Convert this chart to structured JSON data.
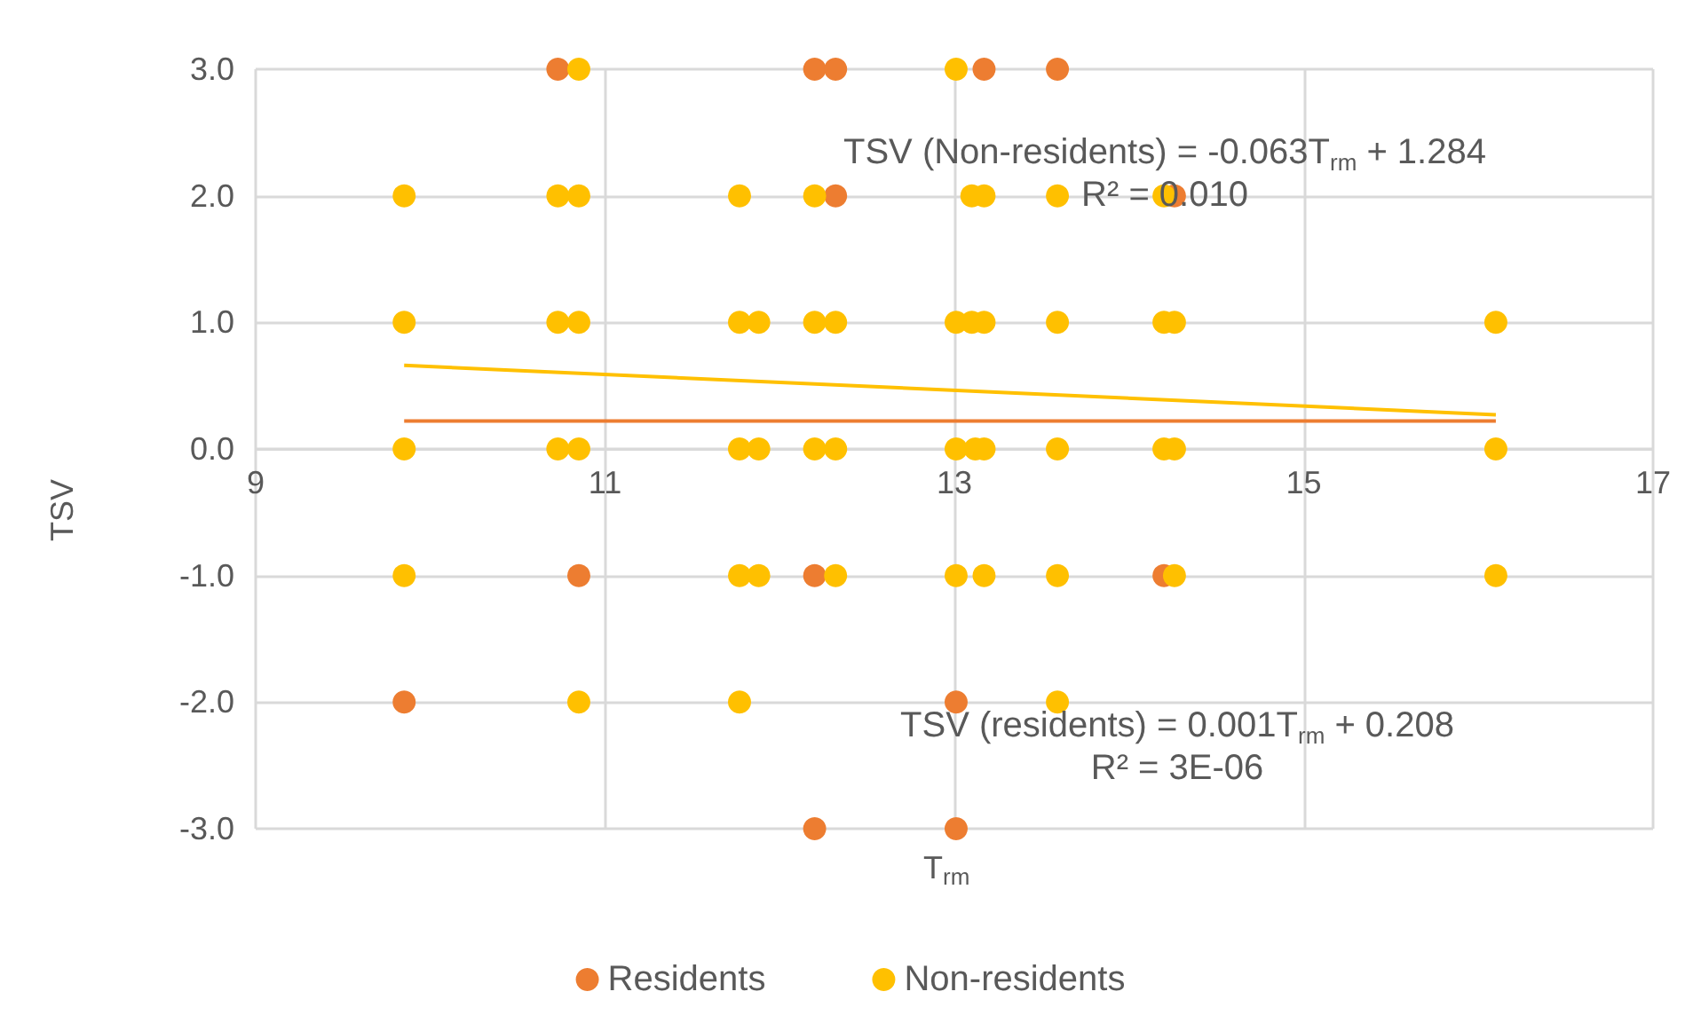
{
  "chart_data": {
    "type": "scatter",
    "xlabel": "T$_{rm}$",
    "ylabel": "TSV",
    "xlim": [
      9,
      17
    ],
    "xticks": [
      9,
      11,
      13,
      15,
      17
    ],
    "ylim": [
      -3,
      3
    ],
    "yticks": [
      {
        "value": -3,
        "label": "-3.0"
      },
      {
        "value": -2,
        "label": "-2.0"
      },
      {
        "value": -1,
        "label": "-1.0"
      },
      {
        "value": 0,
        "label": "0.0"
      },
      {
        "value": 1,
        "label": "1.0"
      },
      {
        "value": 2,
        "label": "2.0"
      },
      {
        "value": 3,
        "label": "3.0"
      }
    ],
    "grid": true,
    "legend": "bottom",
    "marker": "circle",
    "series": [
      {
        "name": "Residents",
        "color": "#ed7d31",
        "x": [
          10.73,
          12.2,
          12.32,
          13.17,
          13.59,
          12.32,
          14.26,
          10.85,
          12.2,
          14.2,
          9.85,
          13.01,
          12.2,
          13.01
        ],
        "values": [
          3,
          3,
          3,
          3,
          3,
          2,
          2,
          -1,
          -1,
          -1,
          -2,
          -2,
          -3,
          -3
        ]
      },
      {
        "name": "Non-residents",
        "color": "#ffc000",
        "x": [
          10.85,
          13.01,
          9.85,
          10.73,
          10.85,
          11.77,
          12.2,
          13.1,
          13.17,
          13.59,
          14.2,
          9.85,
          10.73,
          10.85,
          11.77,
          11.88,
          12.2,
          12.32,
          13.01,
          13.1,
          13.17,
          13.59,
          14.2,
          14.26,
          16.1,
          9.85,
          10.73,
          10.85,
          11.77,
          11.88,
          12.2,
          12.32,
          13.01,
          13.12,
          13.17,
          13.59,
          14.2,
          14.26,
          16.1,
          9.85,
          11.77,
          11.88,
          12.32,
          13.01,
          13.17,
          13.59,
          14.26,
          16.1,
          10.85,
          11.77,
          13.59
        ],
        "values": [
          3,
          3,
          2,
          2,
          2,
          2,
          2,
          2,
          2,
          2,
          2,
          1,
          1,
          1,
          1,
          1,
          1,
          1,
          1,
          1,
          1,
          1,
          1,
          1,
          1,
          0,
          0,
          0,
          0,
          0,
          0,
          0,
          0,
          0,
          0,
          0,
          0,
          0,
          0,
          -1,
          -1,
          -1,
          -1,
          -1,
          -1,
          -1,
          -1,
          -1,
          -2,
          -2,
          -2
        ]
      },
      {
        "type": "line",
        "marker": "none",
        "color": "#ed7d31",
        "x": [
          9.85,
          16.1
        ],
        "values": [
          0.22,
          0.22
        ]
      },
      {
        "type": "line",
        "marker": "none",
        "color": "#ffc000",
        "x": [
          9.85,
          16.1
        ],
        "values": [
          0.66,
          0.27
        ]
      }
    ],
    "annotations": [
      "TSV (Non-residents) = -0.063T$_{rm}$ + 1.284\nR² = 0.010",
      "TSV (residents) = 0.001T$_{rm}$ + 0.208\nR² = 3E-06"
    ]
  }
}
